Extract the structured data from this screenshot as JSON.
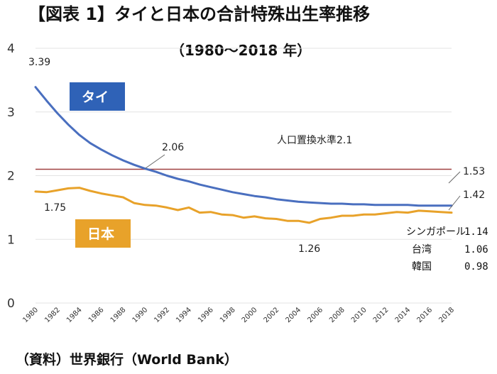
{
  "chart_data": {
    "type": "line",
    "title": "【図表 1】タイと日本の合計特殊出生率推移",
    "subtitle": "（1980～2018 年）",
    "xlabel": "",
    "ylabel": "",
    "ylim": [
      0,
      4
    ],
    "yticks": [
      "0",
      "1",
      "2",
      "3",
      "4"
    ],
    "x": [
      1980,
      1981,
      1982,
      1983,
      1984,
      1985,
      1986,
      1987,
      1988,
      1989,
      1990,
      1991,
      1992,
      1993,
      1994,
      1995,
      1996,
      1997,
      1998,
      1999,
      2000,
      2001,
      2002,
      2003,
      2004,
      2005,
      2006,
      2007,
      2008,
      2009,
      2010,
      2011,
      2012,
      2013,
      2014,
      2015,
      2016,
      2017,
      2018
    ],
    "xticks": [
      "1980",
      "1982",
      "1984",
      "1986",
      "1988",
      "1990",
      "1992",
      "1994",
      "1996",
      "1998",
      "2000",
      "2002",
      "2004",
      "2006",
      "2008",
      "2010",
      "2012",
      "2014",
      "2016",
      "2018"
    ],
    "series": [
      {
        "name": "タイ",
        "color": "#4a6fbf",
        "values": [
          3.39,
          3.18,
          2.98,
          2.8,
          2.64,
          2.51,
          2.41,
          2.32,
          2.24,
          2.17,
          2.11,
          2.06,
          2.0,
          1.95,
          1.91,
          1.86,
          1.82,
          1.78,
          1.74,
          1.71,
          1.68,
          1.66,
          1.63,
          1.61,
          1.59,
          1.58,
          1.57,
          1.56,
          1.56,
          1.55,
          1.55,
          1.54,
          1.54,
          1.54,
          1.54,
          1.53,
          1.53,
          1.53,
          1.53
        ]
      },
      {
        "name": "日本",
        "color": "#e8a22a",
        "values": [
          1.75,
          1.74,
          1.77,
          1.8,
          1.81,
          1.76,
          1.72,
          1.69,
          1.66,
          1.57,
          1.54,
          1.53,
          1.5,
          1.46,
          1.5,
          1.42,
          1.43,
          1.39,
          1.38,
          1.34,
          1.36,
          1.33,
          1.32,
          1.29,
          1.29,
          1.26,
          1.32,
          1.34,
          1.37,
          1.37,
          1.39,
          1.39,
          1.41,
          1.43,
          1.42,
          1.45,
          1.44,
          1.43,
          1.42
        ]
      }
    ],
    "reference_line": {
      "label": "人口置換水準2.1",
      "value": 2.1,
      "color": "#a04040"
    },
    "annotations": {
      "thai_start": "3.39",
      "thai_cross": "2.06",
      "japan_start": "1.75",
      "japan_min": "1.26",
      "thai_end": "1.53",
      "japan_end": "1.42"
    },
    "other_countries": [
      {
        "name": "シンガポール",
        "value": "1.14"
      },
      {
        "name": "台湾",
        "value": "1.06"
      },
      {
        "name": "韓国",
        "value": "0.98"
      }
    ]
  },
  "source": "（資料）世界銀行（World Bank）"
}
